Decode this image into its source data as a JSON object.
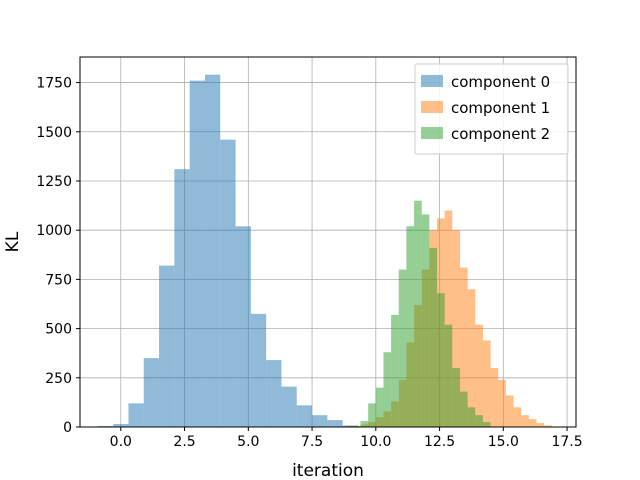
{
  "chart_data": {
    "type": "histogram",
    "title": "",
    "xlabel": "iteration",
    "ylabel": "KL",
    "xlim": [
      -1.6,
      17.85
    ],
    "ylim": [
      0,
      1880
    ],
    "xticks": [
      0.0,
      2.5,
      5.0,
      7.5,
      10.0,
      12.5,
      15.0,
      17.5
    ],
    "xtick_labels": [
      "0.0",
      "2.5",
      "5.0",
      "7.5",
      "10.0",
      "12.5",
      "15.0",
      "17.5"
    ],
    "yticks": [
      0,
      250,
      500,
      750,
      1000,
      1250,
      1500,
      1750
    ],
    "ytick_labels": [
      "0",
      "250",
      "500",
      "750",
      "1000",
      "1250",
      "1500",
      "1750"
    ],
    "grid": true,
    "legend_position": "top-right",
    "series": [
      {
        "name": "component 0",
        "color": "#1f77b4",
        "alpha": 0.5,
        "bin_edges": [
          -0.9,
          -0.3,
          0.3,
          0.9,
          1.5,
          2.1,
          2.7,
          3.3,
          3.9,
          4.5,
          5.1,
          5.7,
          6.3,
          6.9,
          7.5,
          8.1,
          8.7,
          9.3
        ],
        "counts": [
          5,
          15,
          120,
          350,
          820,
          1310,
          1760,
          1790,
          1460,
          1020,
          575,
          340,
          205,
          110,
          60,
          35,
          8
        ]
      },
      {
        "name": "component 1",
        "color": "#ff7f0e",
        "alpha": 0.5,
        "bin_edges": [
          8.8,
          9.4,
          9.7,
          10.0,
          10.3,
          10.6,
          10.9,
          11.2,
          11.5,
          11.8,
          12.1,
          12.4,
          12.7,
          13.0,
          13.3,
          13.6,
          13.9,
          14.2,
          14.5,
          14.8,
          15.1,
          15.4,
          15.7,
          16.0,
          16.3,
          16.6,
          16.9
        ],
        "counts": [
          5,
          12,
          25,
          50,
          80,
          130,
          240,
          430,
          620,
          800,
          1000,
          1060,
          1100,
          1000,
          810,
          700,
          520,
          440,
          300,
          240,
          160,
          100,
          60,
          40,
          20,
          8
        ]
      },
      {
        "name": "component 2",
        "color": "#2ca02c",
        "alpha": 0.5,
        "bin_edges": [
          8.9,
          9.4,
          9.7,
          10.0,
          10.3,
          10.6,
          10.9,
          11.2,
          11.5,
          11.8,
          12.1,
          12.4,
          12.7,
          13.0,
          13.3,
          13.6,
          13.9,
          14.2,
          14.5
        ],
        "counts": [
          5,
          30,
          120,
          200,
          380,
          570,
          800,
          1020,
          1150,
          1080,
          910,
          680,
          520,
          300,
          180,
          100,
          60,
          25
        ]
      }
    ]
  }
}
